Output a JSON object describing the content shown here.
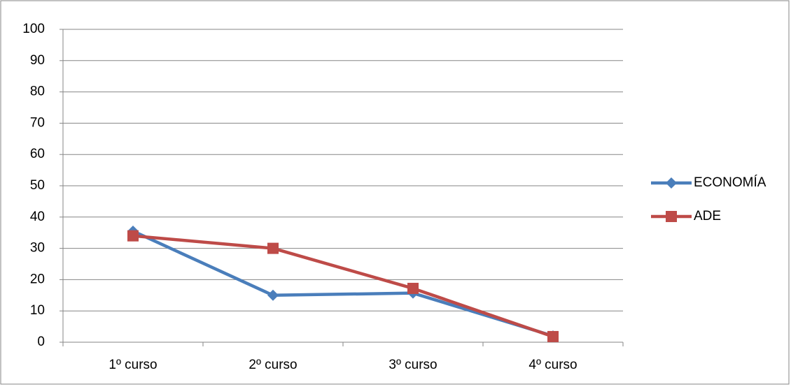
{
  "chart_data": {
    "type": "line",
    "categories": [
      "1º curso",
      "2º curso",
      "3º curso",
      "4º curso"
    ],
    "series": [
      {
        "name": "ECONOMÍA",
        "color": "#4a7ebb",
        "marker": "diamond",
        "values": [
          35.5,
          15,
          15.7,
          2
        ]
      },
      {
        "name": "ADE",
        "color": "#be4b48",
        "marker": "square",
        "values": [
          34,
          30,
          17.2,
          1.8
        ]
      }
    ],
    "ylim": [
      0,
      100
    ],
    "yticks": [
      0,
      10,
      20,
      30,
      40,
      50,
      60,
      70,
      80,
      90,
      100
    ],
    "grid": true,
    "legend": "right"
  }
}
